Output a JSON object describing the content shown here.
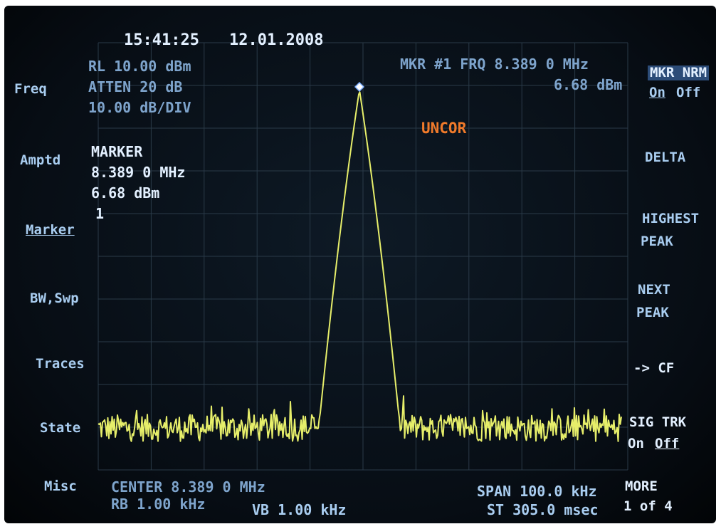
{
  "header": {
    "time": "15:41:25",
    "date": "12.01.2008"
  },
  "settings": {
    "ref_level": "RL 10.00 dBm",
    "atten": "ATTEN 20 dB",
    "scale": "10.00 dB/DIV"
  },
  "marker_readout": {
    "title": "MARKER",
    "frequency": "8.389 0 MHz",
    "amplitude": "6.68 dBm",
    "number": "1"
  },
  "marker_status": {
    "frequency": "MKR #1 FRQ 8.389 0 MHz",
    "amplitude": "6.68 dBm"
  },
  "status": "UNCOR",
  "left_menu": [
    "Freq",
    "Amptd",
    "Marker",
    "BW,Swp",
    "Traces",
    "State",
    "Misc"
  ],
  "right_menu": {
    "mkr_nrm": {
      "label": "MKR NRM",
      "on": "On",
      "off": "Off"
    },
    "delta": "DELTA",
    "highest_peak": [
      "HIGHEST",
      "PEAK"
    ],
    "next_peak": [
      "NEXT",
      "PEAK"
    ],
    "to_cf": "-> CF",
    "sig_trk": {
      "label": "SIG TRK",
      "on": "On",
      "off": "Off"
    },
    "more": [
      "MORE",
      "1 of 4"
    ]
  },
  "footer": {
    "center": "CENTER 8.389 0 MHz",
    "rbw": "RB 1.00 kHz",
    "vbw": "VB 1.00 kHz",
    "span": "SPAN 100.0 kHz",
    "sweep": "ST 305.0 msec"
  }
}
